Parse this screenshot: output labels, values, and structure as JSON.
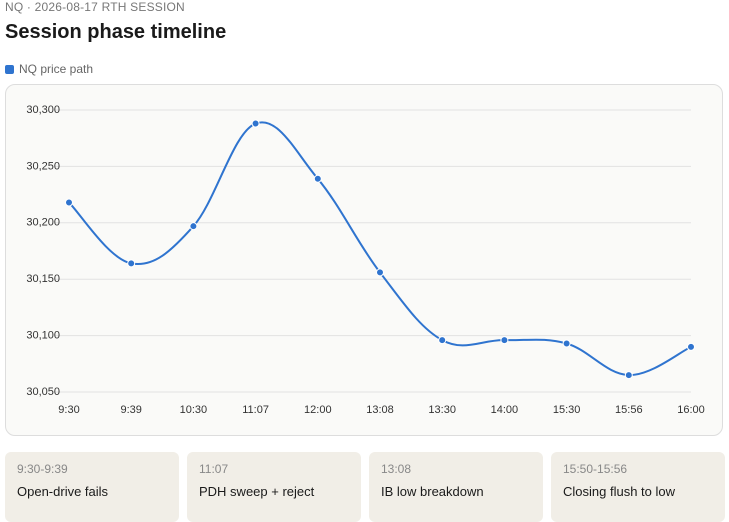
{
  "header": {
    "eyebrow": "NQ · 2026-08-17 RTH SESSION"
  },
  "chart_data": {
    "type": "line",
    "title": "Session phase timeline",
    "categories": [
      "9:30",
      "9:39",
      "10:30",
      "11:07",
      "12:00",
      "13:08",
      "13:30",
      "14:00",
      "15:30",
      "15:56",
      "16:00"
    ],
    "series": [
      {
        "name": "NQ price path",
        "color": "#2f74cf",
        "values": [
          30218,
          30164,
          30197,
          30288,
          30239,
          30156,
          30096,
          30096,
          30093,
          30065,
          30090
        ]
      }
    ],
    "ylim": [
      30050,
      30300
    ],
    "yticks": [
      {
        "value": 30050,
        "label": "30,050"
      },
      {
        "value": 30100,
        "label": "30,100"
      },
      {
        "value": 30150,
        "label": "30,150"
      },
      {
        "value": 30200,
        "label": "30,200"
      },
      {
        "value": 30250,
        "label": "30,250"
      },
      {
        "value": 30300,
        "label": "30,300"
      }
    ],
    "grid": true
  },
  "phases": [
    {
      "time": "9:30-9:39",
      "label": "Open-drive fails"
    },
    {
      "time": "11:07",
      "label": "PDH sweep + reject"
    },
    {
      "time": "13:08",
      "label": "IB low breakdown"
    },
    {
      "time": "15:50-15:56",
      "label": "Closing flush to low"
    }
  ]
}
